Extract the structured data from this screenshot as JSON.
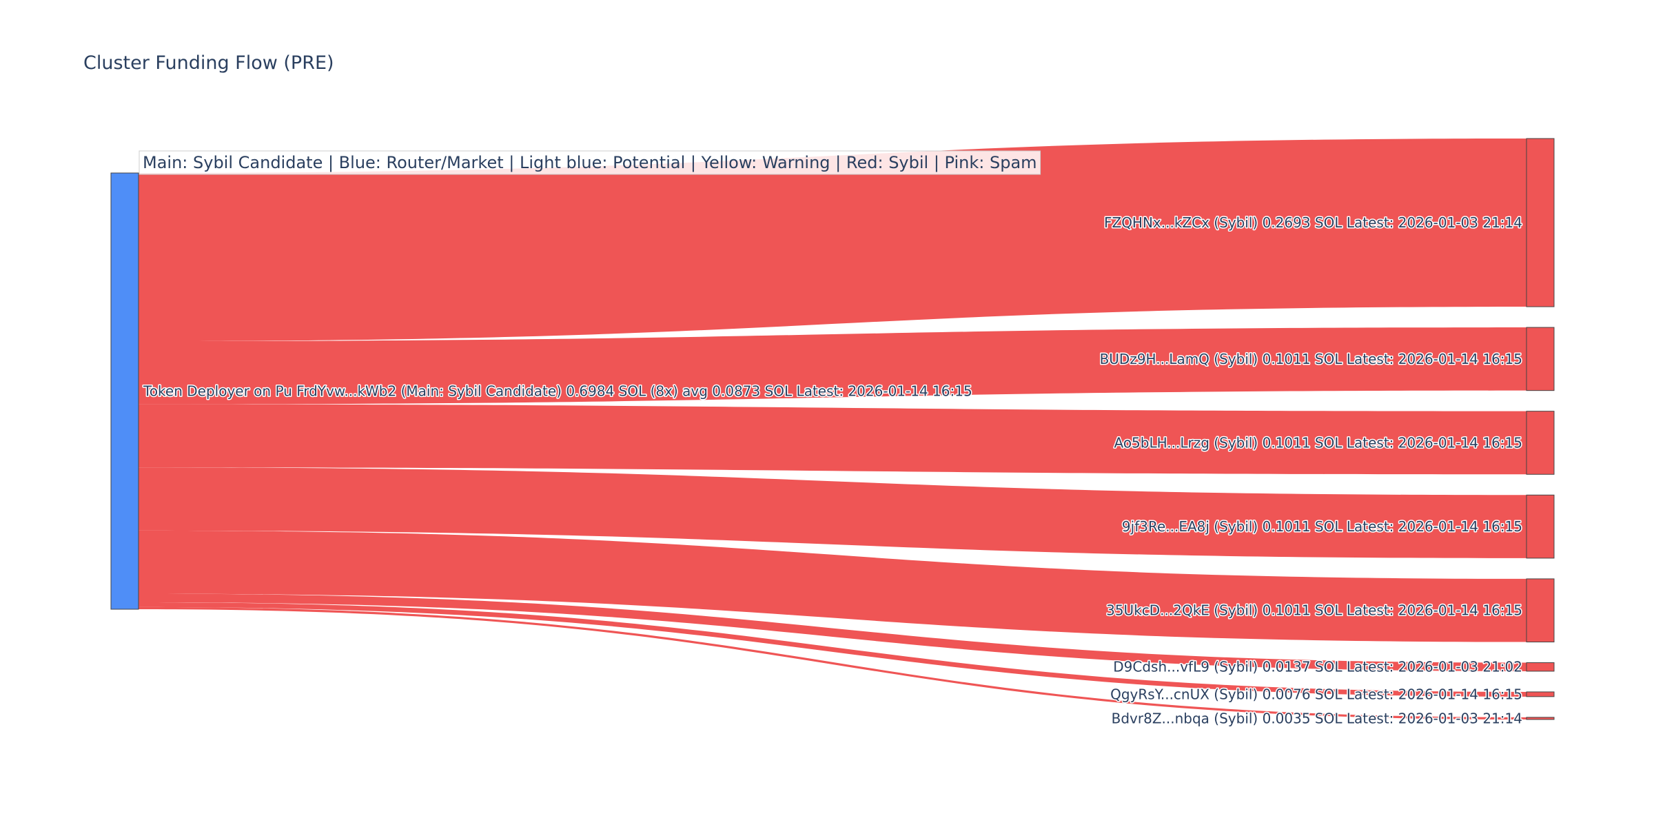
{
  "title": "Cluster Funding Flow (PRE)",
  "legend_note": "Main: Sybil Candidate  |  Blue: Router/Market | Light blue: Potential | Yellow: Warning | Red: Sybil | Pink: Spam",
  "colors": {
    "source_node": "#4f8ef7",
    "target_node": "#ef5555",
    "link": "#ef5555",
    "node_border": "#444444",
    "text": "#2a3f5f",
    "legend_bg": "#ffffff"
  },
  "chart_data": {
    "type": "sankey",
    "title": "Cluster Funding Flow (PRE)",
    "source": {
      "label": "Token Deployer on Pu FrdYvw...kWb2 (Main: Sybil Candidate) 0.6984 SOL (8x) avg 0.0873 SOL Latest: 2026-01-14 16:15",
      "value": 0.6984,
      "unit": "SOL"
    },
    "targets": [
      {
        "label": "FZQHNx...kZCx (Sybil) 0.2693 SOL Latest: 2026-01-03 21:14",
        "value": 0.2693
      },
      {
        "label": "BUDz9H...LamQ (Sybil) 0.1011 SOL Latest: 2026-01-14 16:15",
        "value": 0.1011
      },
      {
        "label": "Ao5bLH...Lrzg (Sybil) 0.1011 SOL Latest: 2026-01-14 16:15",
        "value": 0.1011
      },
      {
        "label": "9jf3Re...EA8j (Sybil) 0.1011 SOL Latest: 2026-01-14 16:15",
        "value": 0.1011
      },
      {
        "label": "35UkcD...2QkE (Sybil) 0.1011 SOL Latest: 2026-01-14 16:15",
        "value": 0.1011
      },
      {
        "label": "D9Cdsh...vfL9 (Sybil) 0.0137 SOL Latest: 2026-01-03 21:02",
        "value": 0.0137
      },
      {
        "label": "QgyRsY...cnUX (Sybil) 0.0076 SOL Latest: 2026-01-14 16:15",
        "value": 0.0076
      },
      {
        "label": "Bdvr8Z...nbqa (Sybil) 0.0035 SOL Latest: 2026-01-03 21:14",
        "value": 0.0035
      }
    ]
  }
}
